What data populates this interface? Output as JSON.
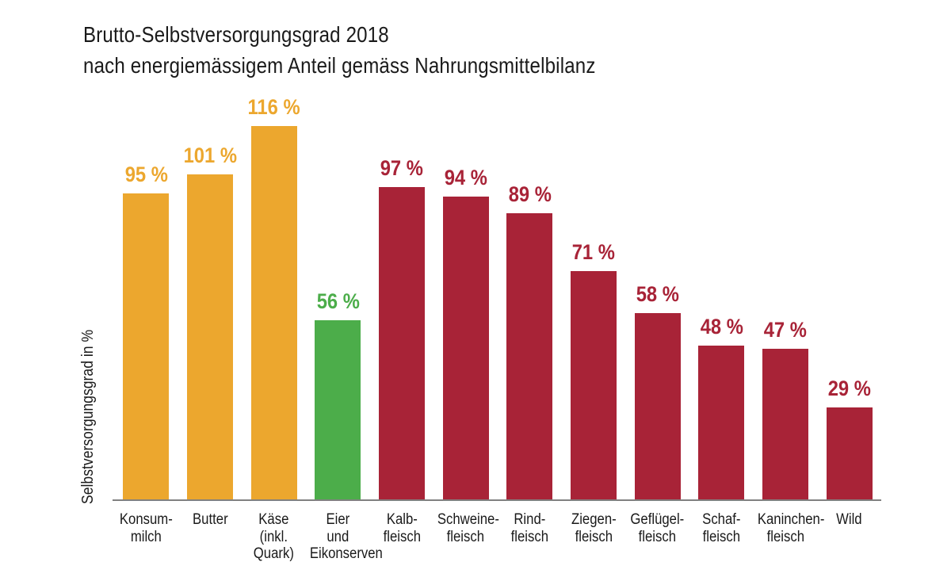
{
  "chart_data": {
    "type": "bar",
    "title": "Brutto-Selbstversorgungsgrad 2018",
    "subtitle": "nach energiemässigem Anteil gemäss Nahrungsmittelbilanz",
    "ylabel": "Selbstversorgungsgrad in %",
    "xlabel": "",
    "ylim": [
      0,
      120
    ],
    "grid": false,
    "legend": "none",
    "categories": [
      "Konsum-\nmilch",
      "Butter",
      "Käse\n(inkl.\nQuark)",
      "Eier\nund\nEikonserven",
      "Kalb-\nfleisch",
      "Schweine-\nfleisch",
      "Rind-\nfleisch",
      "Ziegen-\nfleisch",
      "Geflügel-\nfleisch",
      "Schaf-\nfleisch",
      "Kaninchen-\nfleisch",
      "Wild"
    ],
    "values": [
      95,
      101,
      116,
      56,
      97,
      94,
      89,
      71,
      58,
      48,
      47,
      29
    ],
    "value_labels": [
      "95 %",
      "101 %",
      "116 %",
      "56 %",
      "97 %",
      "94 %",
      "89 %",
      "71 %",
      "58 %",
      "48 %",
      "47 %",
      "29 %"
    ],
    "groups": [
      "dairy",
      "dairy",
      "dairy",
      "eggs",
      "meat",
      "meat",
      "meat",
      "meat",
      "meat",
      "meat",
      "meat",
      "meat"
    ],
    "palette": {
      "dairy": "#ECA72E",
      "eggs": "#4CAD4A",
      "meat": "#A82337"
    },
    "axis_line_color": "#818181",
    "text_color": "#1a1a1a"
  }
}
